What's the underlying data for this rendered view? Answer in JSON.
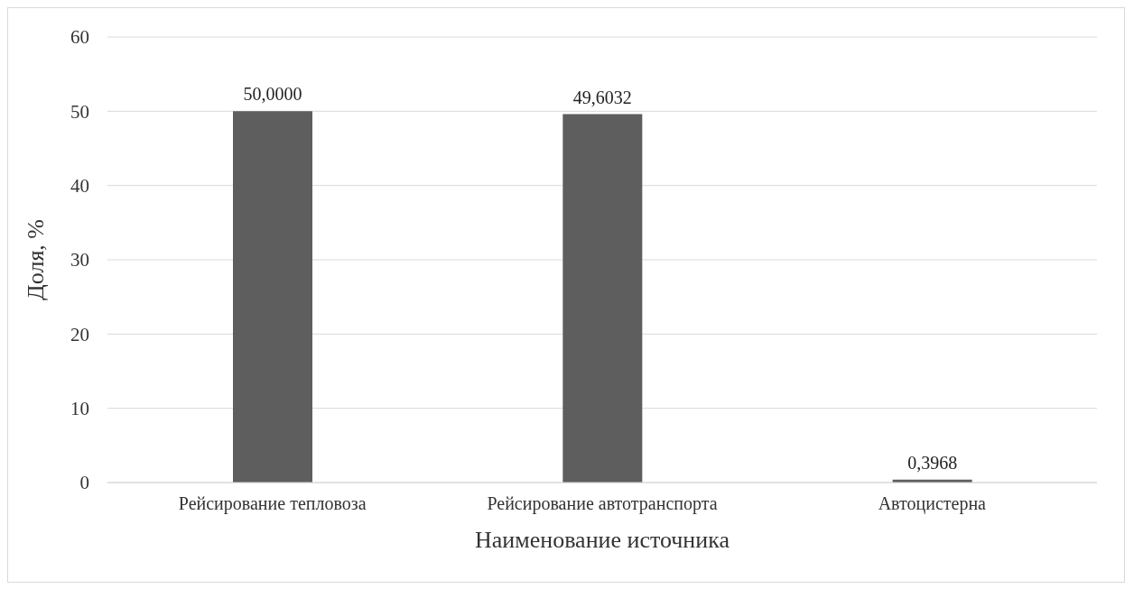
{
  "chart_data": {
    "type": "bar",
    "xlabel": "Наименование источника",
    "ylabel": "Доля, %",
    "categories": [
      "Рейсирование тепловоза",
      "Рейсирование автотранспорта",
      "Автоцистерна"
    ],
    "values": [
      50,
      49.6032,
      0.3968
    ],
    "value_labels": [
      "50,0000",
      "49,6032",
      "0,3968"
    ],
    "color": "#5e5e5e",
    "ylim": [
      0,
      60
    ],
    "yticks": [
      0,
      10,
      20,
      30,
      40,
      50,
      60
    ],
    "grid": "y"
  }
}
